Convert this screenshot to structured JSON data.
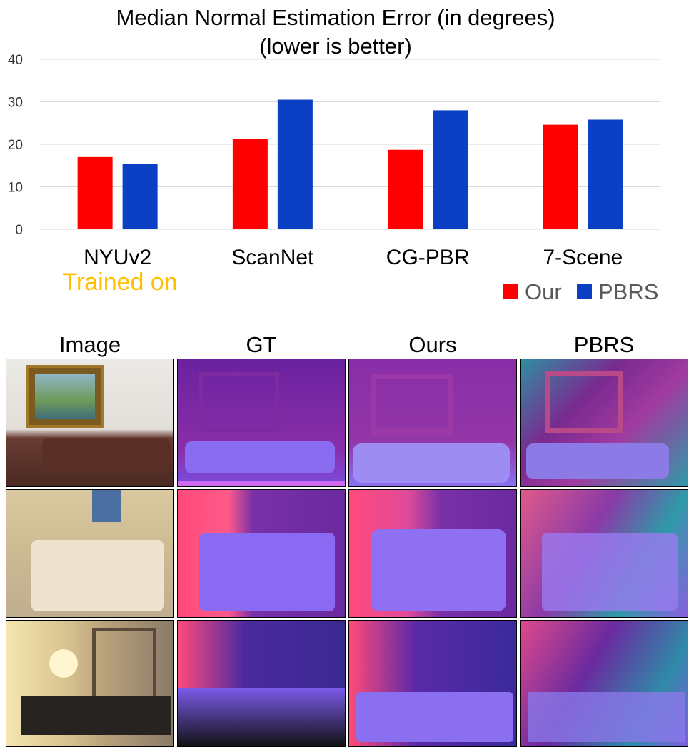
{
  "chart_data": {
    "type": "bar",
    "title": "Median Normal Estimation Error (in degrees)",
    "subtitle": "(lower is better)",
    "categories": [
      "NYUv2",
      "ScanNet",
      "CG-PBR",
      "7-Scene"
    ],
    "series": [
      {
        "name": "Our",
        "color": "#ff0000",
        "values": [
          17.0,
          21.2,
          18.7,
          24.6
        ]
      },
      {
        "name": "PBRS",
        "color": "#0b3fc4",
        "values": [
          15.3,
          30.5,
          28.0,
          25.8
        ]
      }
    ],
    "yticks": [
      0,
      10,
      20,
      30,
      40
    ],
    "ylim": [
      0,
      40
    ],
    "grid": true,
    "legend_position": "bottom-right",
    "annotation": {
      "text": "Trained on",
      "color": "#ffc000",
      "category": "NYUv2"
    }
  },
  "image_grid": {
    "columns": [
      "Image",
      "GT",
      "Ours",
      "PBRS"
    ],
    "rows": 3
  }
}
